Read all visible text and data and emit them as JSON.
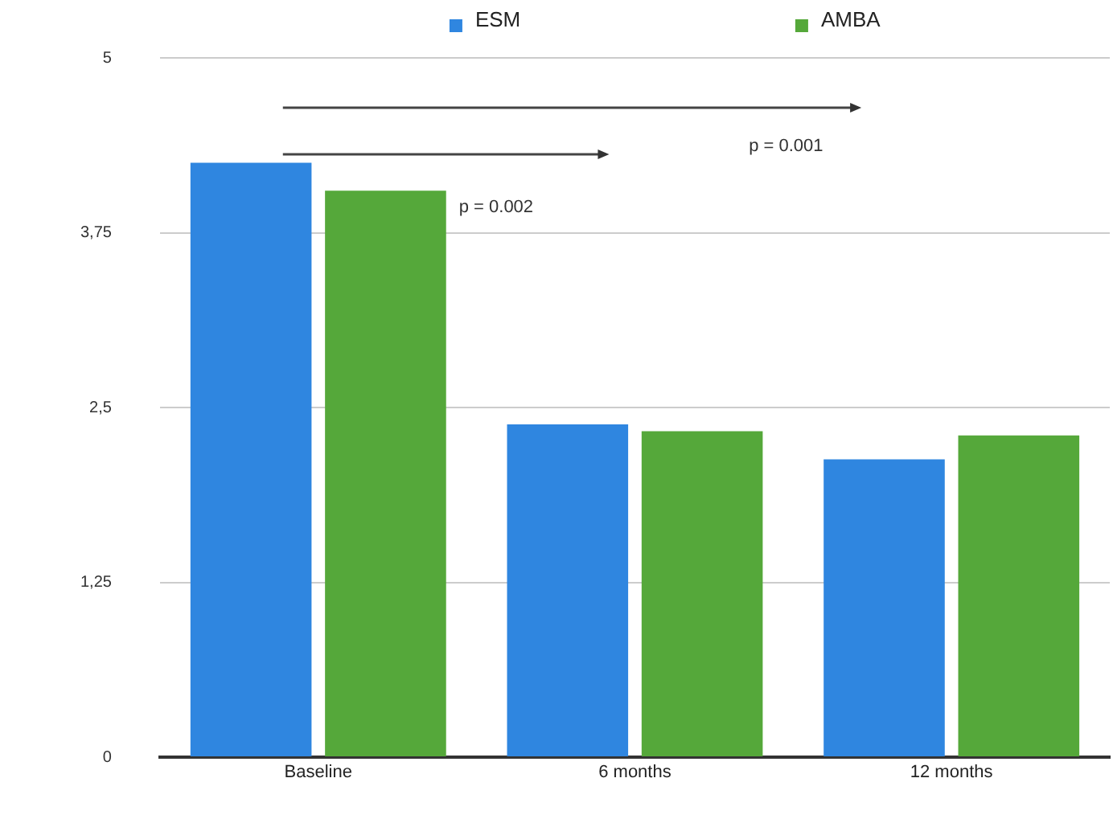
{
  "chart_data": {
    "type": "bar",
    "categories": [
      "Baseline",
      "6 months",
      "12 months"
    ],
    "series": [
      {
        "name": "ESM",
        "color": "#2f86e0",
        "values": [
          4.25,
          2.38,
          2.13
        ]
      },
      {
        "name": "AMBA",
        "color": "#55a83a",
        "values": [
          4.05,
          2.33,
          2.3
        ]
      }
    ],
    "ylim": [
      0,
      5
    ],
    "yticks": [
      0,
      {
        "value": 1.25,
        "label": "1,25"
      },
      {
        "value": 2.5,
        "label": "2,5"
      },
      {
        "value": 3.75,
        "label": "3,75"
      },
      5
    ],
    "grid": "y",
    "legend": "top",
    "annotations": [
      "p = 0.002",
      "p = 0.001"
    ]
  }
}
